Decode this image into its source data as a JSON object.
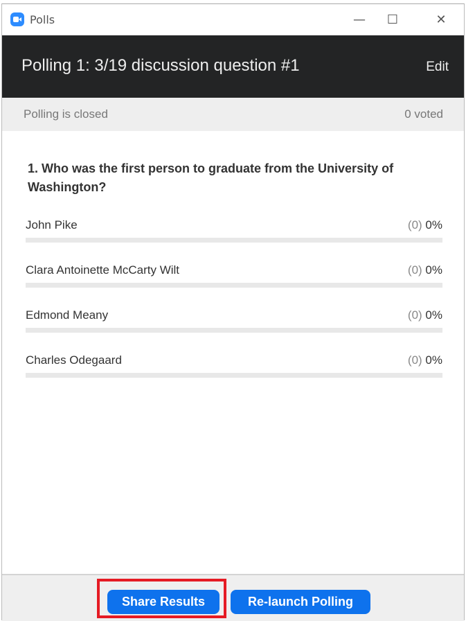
{
  "window": {
    "title": "Polls",
    "minimize": "—",
    "maximize": "☐",
    "close": "✕"
  },
  "header": {
    "title": "Polling 1: 3/19 discussion question #1",
    "edit_label": "Edit"
  },
  "status": {
    "state": "Polling is closed",
    "voted": "0 voted"
  },
  "question": "1. Who was the first person to graduate from the University of Washington?",
  "options": [
    {
      "label": "John Pike",
      "count": "(0)",
      "percent": "0%",
      "fraction": 0
    },
    {
      "label": "Clara Antoinette McCarty Wilt",
      "count": "(0)",
      "percent": "0%",
      "fraction": 0
    },
    {
      "label": "Edmond Meany",
      "count": "(0)",
      "percent": "0%",
      "fraction": 0
    },
    {
      "label": "Charles Odegaard",
      "count": "(0)",
      "percent": "0%",
      "fraction": 0
    }
  ],
  "footer": {
    "share_label": "Share Results",
    "relaunch_label": "Re-launch Polling"
  },
  "colors": {
    "accent": "#0e72ed",
    "header_bg": "#232425",
    "highlight": "#e51b24"
  }
}
